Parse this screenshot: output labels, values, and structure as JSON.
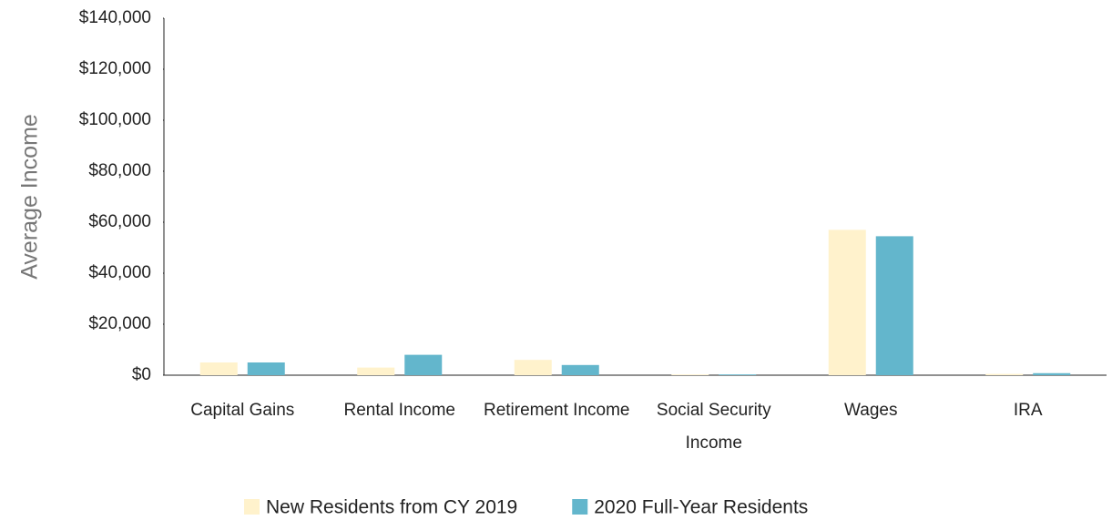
{
  "chart_data": {
    "type": "bar",
    "y_label": "Average Income",
    "categories": [
      "Capital Gains",
      "Rental Income",
      "Retirement Income",
      "Social Security Income",
      "Wages",
      "IRA"
    ],
    "series": [
      {
        "name": "New Residents from CY 2019",
        "color": "#fff2cc",
        "values": [
          5000,
          3000,
          6000,
          300,
          57000,
          500
        ]
      },
      {
        "name": "2020 Full-Year Residents",
        "color": "#63b6cc",
        "values": [
          5000,
          8000,
          4000,
          300,
          54500,
          800
        ]
      }
    ],
    "ylim": [
      0,
      140000
    ],
    "yticks": [
      {
        "value": 0,
        "label": "$0"
      },
      {
        "value": 20000,
        "label": "$20,000"
      },
      {
        "value": 40000,
        "label": "$40,000"
      },
      {
        "value": 60000,
        "label": "$60,000"
      },
      {
        "value": 80000,
        "label": "$80,000"
      },
      {
        "value": 100000,
        "label": "$100,000"
      },
      {
        "value": 120000,
        "label": "$120,000"
      },
      {
        "value": 140000,
        "label": "$140,000"
      }
    ],
    "grid": false,
    "legend": "bottom"
  }
}
